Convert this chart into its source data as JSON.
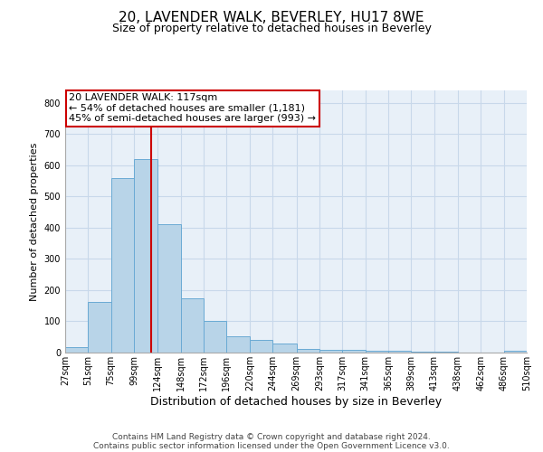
{
  "title_line1": "20, LAVENDER WALK, BEVERLEY, HU17 8WE",
  "title_line2": "Size of property relative to detached houses in Beverley",
  "xlabel": "Distribution of detached houses by size in Beverley",
  "ylabel": "Number of detached properties",
  "bar_color": "#b8d4e8",
  "bar_edge_color": "#6aaad4",
  "bg_color": "#e8f0f8",
  "grid_color": "#c8d8ea",
  "annotation_line1": "20 LAVENDER WALK: 117sqm",
  "annotation_line2": "← 54% of detached houses are smaller (1,181)",
  "annotation_line3": "45% of semi-detached houses are larger (993) →",
  "marker_value": 117,
  "marker_color": "#cc0000",
  "footnote_line1": "Contains HM Land Registry data © Crown copyright and database right 2024.",
  "footnote_line2": "Contains public sector information licensed under the Open Government Licence v3.0.",
  "bins": [
    27,
    51,
    75,
    99,
    124,
    148,
    172,
    196,
    220,
    244,
    269,
    293,
    317,
    341,
    365,
    389,
    413,
    438,
    462,
    486,
    510
  ],
  "counts": [
    18,
    163,
    560,
    620,
    410,
    175,
    100,
    52,
    40,
    30,
    13,
    8,
    8,
    6,
    5,
    3,
    2,
    1,
    0,
    5
  ],
  "ylim": [
    0,
    840
  ],
  "yticks": [
    0,
    100,
    200,
    300,
    400,
    500,
    600,
    700,
    800
  ],
  "title_fontsize": 11,
  "subtitle_fontsize": 9,
  "xlabel_fontsize": 9,
  "ylabel_fontsize": 8,
  "tick_fontsize": 7,
  "annot_fontsize": 8,
  "footnote_fontsize": 6.5
}
